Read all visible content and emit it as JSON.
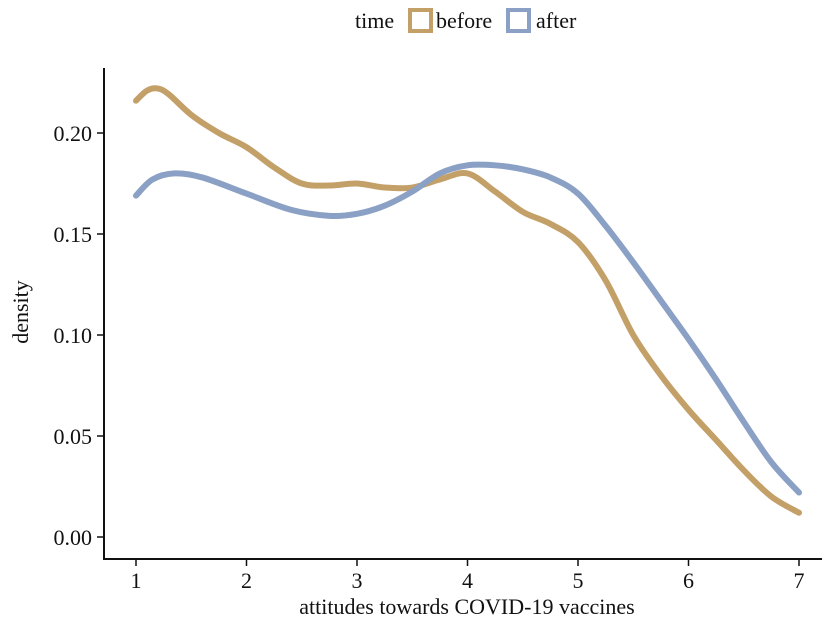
{
  "chart_data": {
    "type": "line",
    "xlabel": "attitudes towards COVID-19 vaccines",
    "ylabel": "density",
    "xlim": [
      1,
      7
    ],
    "ylim": [
      0,
      0.22
    ],
    "x_ticks": [
      1,
      2,
      3,
      4,
      5,
      6,
      7
    ],
    "y_ticks": [
      0.0,
      0.05,
      0.1,
      0.15,
      0.2
    ],
    "x_tick_labels": [
      "1",
      "2",
      "3",
      "4",
      "5",
      "6",
      "7"
    ],
    "y_tick_labels": [
      "0.00",
      "0.05",
      "0.10",
      "0.15",
      "0.20"
    ],
    "grid": false,
    "legend": {
      "title": "time",
      "position": "top",
      "entries": [
        "before",
        "after"
      ]
    },
    "series": [
      {
        "name": "before",
        "color": "#c4a069",
        "x": [
          1.0,
          1.1,
          1.2,
          1.3,
          1.5,
          1.75,
          2.0,
          2.25,
          2.5,
          2.75,
          3.0,
          3.25,
          3.5,
          3.75,
          4.0,
          4.25,
          4.5,
          4.75,
          5.0,
          5.25,
          5.5,
          5.75,
          6.0,
          6.25,
          6.5,
          6.75,
          7.0
        ],
        "y": [
          0.216,
          0.221,
          0.222,
          0.219,
          0.209,
          0.2,
          0.193,
          0.183,
          0.175,
          0.174,
          0.175,
          0.173,
          0.173,
          0.177,
          0.18,
          0.171,
          0.161,
          0.155,
          0.146,
          0.127,
          0.1,
          0.08,
          0.063,
          0.048,
          0.033,
          0.02,
          0.012
        ]
      },
      {
        "name": "after",
        "color": "#8aa0c4",
        "x": [
          1.0,
          1.15,
          1.35,
          1.6,
          2.0,
          2.4,
          2.75,
          3.0,
          3.25,
          3.5,
          3.75,
          4.0,
          4.25,
          4.5,
          4.75,
          5.0,
          5.25,
          5.5,
          5.75,
          6.0,
          6.25,
          6.5,
          6.75,
          7.0
        ],
        "y": [
          0.169,
          0.177,
          0.18,
          0.178,
          0.17,
          0.162,
          0.159,
          0.16,
          0.164,
          0.171,
          0.18,
          0.184,
          0.184,
          0.182,
          0.178,
          0.17,
          0.154,
          0.136,
          0.117,
          0.098,
          0.078,
          0.057,
          0.037,
          0.022
        ]
      }
    ]
  }
}
